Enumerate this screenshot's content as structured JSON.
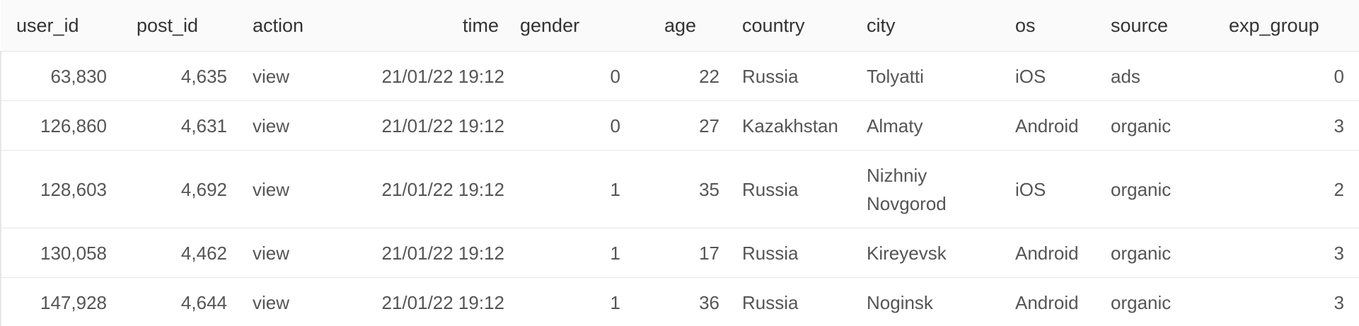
{
  "table": {
    "columns": [
      "user_id",
      "post_id",
      "action",
      "time",
      "gender",
      "age",
      "country",
      "city",
      "os",
      "source",
      "exp_group"
    ],
    "rows": [
      {
        "user_id": "63,830",
        "post_id": "4,635",
        "action": "view",
        "time": "21/01/22 19:12",
        "gender": "0",
        "age": "22",
        "country": "Russia",
        "city": "Tolyatti",
        "os": "iOS",
        "source": "ads",
        "exp_group": "0"
      },
      {
        "user_id": "126,860",
        "post_id": "4,631",
        "action": "view",
        "time": "21/01/22 19:12",
        "gender": "0",
        "age": "27",
        "country": "Kazakhstan",
        "city": "Almaty",
        "os": "Android",
        "source": "organic",
        "exp_group": "3"
      },
      {
        "user_id": "128,603",
        "post_id": "4,692",
        "action": "view",
        "time": "21/01/22 19:12",
        "gender": "1",
        "age": "35",
        "country": "Russia",
        "city": "Nizhniy Novgorod",
        "os": "iOS",
        "source": "organic",
        "exp_group": "2"
      },
      {
        "user_id": "130,058",
        "post_id": "4,462",
        "action": "view",
        "time": "21/01/22 19:12",
        "gender": "1",
        "age": "17",
        "country": "Russia",
        "city": "Kireyevsk",
        "os": "Android",
        "source": "organic",
        "exp_group": "3"
      },
      {
        "user_id": "147,928",
        "post_id": "4,644",
        "action": "view",
        "time": "21/01/22 19:12",
        "gender": "1",
        "age": "36",
        "country": "Russia",
        "city": "Noginsk",
        "os": "Android",
        "source": "organic",
        "exp_group": "3"
      }
    ]
  }
}
